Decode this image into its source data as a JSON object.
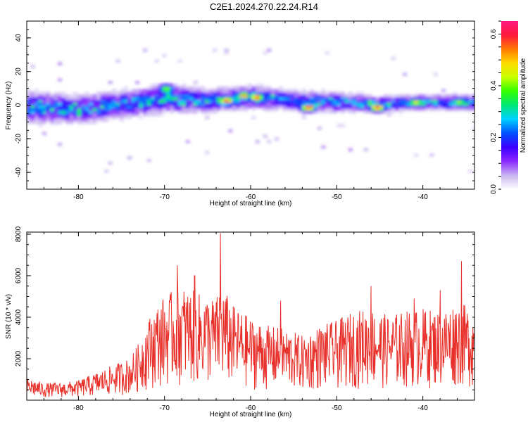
{
  "title": "C2E1.2024.270.22.24.R14",
  "chart_data": [
    {
      "type": "heatmap",
      "xlabel": "Height of straight line (km)",
      "ylabel": "Frequency (Hz)",
      "xlim": [
        -86,
        -34
      ],
      "ylim": [
        -50,
        50
      ],
      "xticks": [
        -80,
        -70,
        -60,
        -50,
        -40
      ],
      "yticks": [
        -40,
        -20,
        0,
        20,
        40
      ],
      "colorbar": {
        "label": "Normalized spectral amplitude",
        "range": [
          0.0,
          0.65
        ],
        "ticks": [
          0.0,
          0.2,
          0.4,
          0.6
        ],
        "colors": [
          "#ffffff",
          "#c8b4f0",
          "#8a28ff",
          "#3b00ff",
          "#0050ff",
          "#00d2ff",
          "#00e676",
          "#32ff00",
          "#c8ff00",
          "#ffdc00",
          "#ff7800",
          "#ff1a3c",
          "#ff1a82"
        ]
      },
      "band": {
        "center_frequency": [
          [
            -85,
            -2
          ],
          [
            -80,
            -3
          ],
          [
            -75,
            0
          ],
          [
            -70,
            3
          ],
          [
            -65,
            2
          ],
          [
            -60,
            4
          ],
          [
            -55,
            2
          ],
          [
            -50,
            1
          ],
          [
            -45,
            0
          ],
          [
            -40,
            1
          ],
          [
            -35,
            1
          ]
        ],
        "half_width": [
          [
            -85,
            8
          ],
          [
            -80,
            7
          ],
          [
            -75,
            7
          ],
          [
            -70,
            7
          ],
          [
            -65,
            6
          ],
          [
            -60,
            6
          ],
          [
            -55,
            5
          ],
          [
            -50,
            5
          ],
          [
            -45,
            4
          ],
          [
            -40,
            4
          ],
          [
            -35,
            4
          ]
        ]
      },
      "hotspots": [
        {
          "x": -63,
          "y": 2,
          "value": 0.62
        },
        {
          "x": -61,
          "y": 5,
          "value": 0.55
        },
        {
          "x": -59.5,
          "y": 4,
          "value": 0.6
        },
        {
          "x": -53.5,
          "y": -2,
          "value": 0.64
        },
        {
          "x": -45.5,
          "y": -2,
          "value": 0.63
        },
        {
          "x": -41,
          "y": 1,
          "value": 0.5
        },
        {
          "x": -36,
          "y": 1,
          "value": 0.45
        },
        {
          "x": -70,
          "y": 9,
          "value": 0.45
        },
        {
          "x": -82,
          "y": -5,
          "value": 0.35
        }
      ]
    },
    {
      "type": "line",
      "xlabel": "Height of straight line (km)",
      "ylabel": "SNR (10 * v/v)",
      "xlim": [
        -86,
        -34
      ],
      "ylim": [
        0,
        8100
      ],
      "xticks": [
        -80,
        -70,
        -60,
        -50,
        -40
      ],
      "yticks": [
        2000,
        4000,
        6000,
        8000
      ],
      "color": "#e8302a",
      "envelope": [
        [
          -86,
          900
        ],
        [
          -84,
          700
        ],
        [
          -82,
          700
        ],
        [
          -80,
          800
        ],
        [
          -78,
          1100
        ],
        [
          -76,
          1400
        ],
        [
          -74,
          1700
        ],
        [
          -73,
          2300
        ],
        [
          -72,
          3200
        ],
        [
          -71,
          3800
        ],
        [
          -70,
          4200
        ],
        [
          -68,
          4600
        ],
        [
          -66,
          4300
        ],
        [
          -64,
          4100
        ],
        [
          -63.5,
          4700
        ],
        [
          -62,
          3800
        ],
        [
          -60,
          3300
        ],
        [
          -58,
          3000
        ],
        [
          -56,
          2900
        ],
        [
          -54,
          2600
        ],
        [
          -52,
          3000
        ],
        [
          -50,
          3200
        ],
        [
          -48,
          3600
        ],
        [
          -46,
          3700
        ],
        [
          -44,
          3400
        ],
        [
          -42,
          3600
        ],
        [
          -40,
          3700
        ],
        [
          -38,
          3600
        ],
        [
          -36,
          4000
        ],
        [
          -34,
          3600
        ]
      ],
      "peaks": [
        [
          -68.5,
          6500
        ],
        [
          -66.5,
          6000
        ],
        [
          -63.5,
          8050
        ],
        [
          -56.5,
          4800
        ],
        [
          -46,
          5500
        ],
        [
          -41,
          4900
        ],
        [
          -38,
          5300
        ],
        [
          -35.5,
          6700
        ]
      ]
    }
  ]
}
